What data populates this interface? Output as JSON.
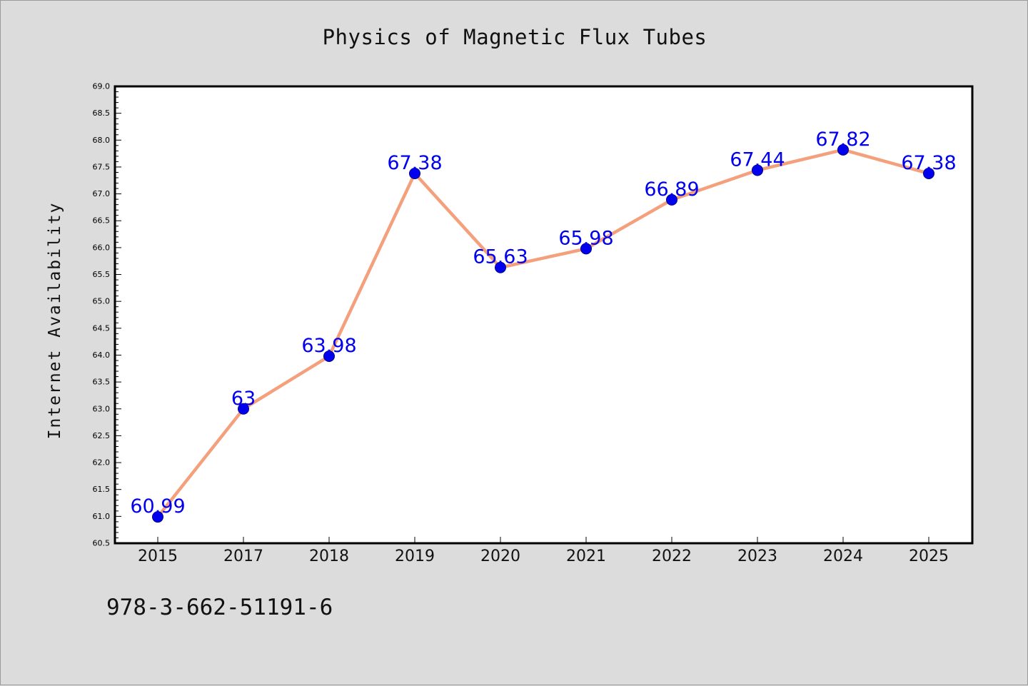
{
  "chart_data": {
    "type": "line",
    "title": "Physics of Magnetic Flux Tubes",
    "xlabel": "",
    "ylabel": "Internet Availability",
    "categories": [
      "2015",
      "2017",
      "2018",
      "2019",
      "2020",
      "2021",
      "2022",
      "2023",
      "2024",
      "2025"
    ],
    "series": [
      {
        "values": [
          60.99,
          63,
          63.98,
          67.38,
          65.63,
          65.98,
          66.89,
          67.44,
          67.82,
          67.38
        ],
        "data_labels": [
          "60.99",
          "63",
          "63.98",
          "67.38",
          "65.63",
          "65.98",
          "66.89",
          "67.44",
          "67.82",
          "67.38"
        ],
        "line_color": "#f4a07c",
        "marker_color": "#0000ee"
      }
    ],
    "ylim": [
      60.5,
      69.0
    ],
    "yticks": [
      "60.5",
      "61.0",
      "61.5",
      "62.0",
      "62.5",
      "63.0",
      "63.5",
      "64.0",
      "64.5",
      "65.0",
      "65.5",
      "66.0",
      "66.5",
      "67.0",
      "67.5",
      "68.0",
      "68.5",
      "69.0"
    ],
    "grid": false,
    "legend": "none",
    "label_color": "#0000ee",
    "background": "#dcdcdc",
    "plot_background": "#ffffff"
  },
  "annotation": {
    "isbn": "978-3-662-51191-6"
  }
}
